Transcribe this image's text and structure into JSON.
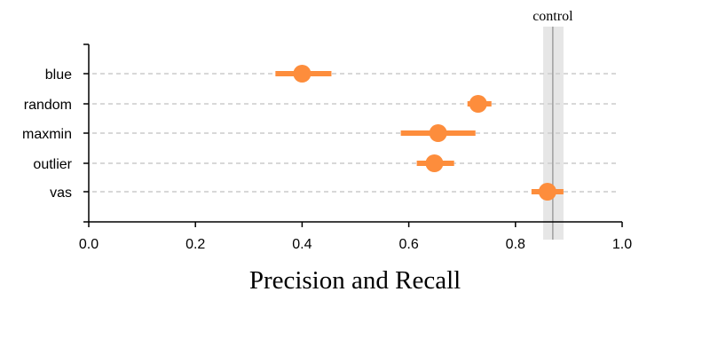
{
  "chart_data": {
    "type": "scatter",
    "title": "Precision and Recall",
    "xlabel": "Precision and Recall",
    "ylabel": "",
    "xlim": [
      0,
      1
    ],
    "x_ticks": [
      "0.0",
      "0.2",
      "0.4",
      "0.6",
      "0.8",
      "1.0"
    ],
    "categories": [
      "blue",
      "random",
      "maxmin",
      "outlier",
      "vas"
    ],
    "series": [
      {
        "values": [
          0.4,
          0.73,
          0.655,
          0.648,
          0.86
        ],
        "ci_low": [
          0.35,
          0.71,
          0.585,
          0.615,
          0.83
        ],
        "ci_high": [
          0.455,
          0.755,
          0.725,
          0.685,
          0.89
        ]
      }
    ],
    "control": {
      "label": "control",
      "value": 0.87,
      "band": [
        0.852,
        0.89
      ]
    },
    "grid": "dashed horizontal lines per category",
    "colors": {
      "point": "#fd8d3c",
      "control_line": "#9e9e9e",
      "control_band": "#e6e6e6",
      "grid": "#cccccc",
      "axis": "#000000"
    }
  }
}
